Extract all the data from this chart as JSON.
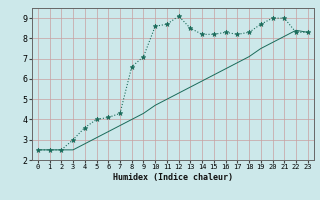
{
  "xlabel": "Humidex (Indice chaleur)",
  "bg_color": "#cce8ea",
  "grid_color_major": "#c8a0a0",
  "line_color": "#1a6b5a",
  "xlim": [
    -0.5,
    23.5
  ],
  "ylim": [
    2.0,
    9.5
  ],
  "yticks": [
    2,
    3,
    4,
    5,
    6,
    7,
    8,
    9
  ],
  "xticks": [
    0,
    1,
    2,
    3,
    4,
    5,
    6,
    7,
    8,
    9,
    10,
    11,
    12,
    13,
    14,
    15,
    16,
    17,
    18,
    19,
    20,
    21,
    22,
    23
  ],
  "curve1_x": [
    0,
    1,
    2,
    3,
    4,
    5,
    6,
    7,
    8,
    9,
    10,
    11,
    12,
    13,
    14,
    15,
    16,
    17,
    18,
    19,
    20,
    21,
    22,
    23
  ],
  "curve1_y": [
    2.5,
    2.5,
    2.5,
    3.0,
    3.6,
    4.0,
    4.1,
    4.3,
    6.6,
    7.1,
    8.6,
    8.7,
    9.1,
    8.5,
    8.2,
    8.2,
    8.3,
    8.2,
    8.3,
    8.7,
    9.0,
    9.0,
    8.3,
    8.3
  ],
  "curve2_x": [
    0,
    1,
    2,
    3,
    4,
    5,
    6,
    7,
    8,
    9,
    10,
    11,
    12,
    13,
    14,
    15,
    16,
    17,
    18,
    19,
    20,
    21,
    22,
    23
  ],
  "curve2_y": [
    2.5,
    2.5,
    2.5,
    2.5,
    2.8,
    3.1,
    3.4,
    3.7,
    4.0,
    4.3,
    4.7,
    5.0,
    5.3,
    5.6,
    5.9,
    6.2,
    6.5,
    6.8,
    7.1,
    7.5,
    7.8,
    8.1,
    8.4,
    8.3
  ]
}
